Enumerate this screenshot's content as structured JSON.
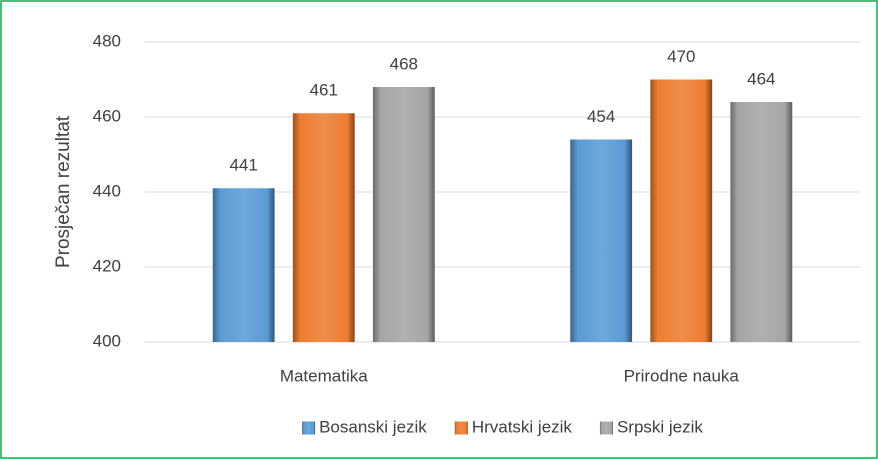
{
  "chart_data": {
    "type": "bar",
    "y_label": "Prosječan rezultat",
    "categories": [
      "Matematika",
      "Prirodne nauka"
    ],
    "series": [
      {
        "name": "Bosanski jezik",
        "color": "#5b9bd5",
        "values": [
          441,
          454
        ]
      },
      {
        "name": "Hrvatski jezik",
        "color": "#ed7d31",
        "values": [
          461,
          470
        ]
      },
      {
        "name": "Srpski jezik",
        "color": "#a5a5a5",
        "values": [
          468,
          464
        ]
      }
    ],
    "ylim": [
      400,
      480
    ],
    "yticks": [
      400,
      420,
      440,
      460,
      480
    ],
    "grid": true,
    "legend": "bottom"
  }
}
